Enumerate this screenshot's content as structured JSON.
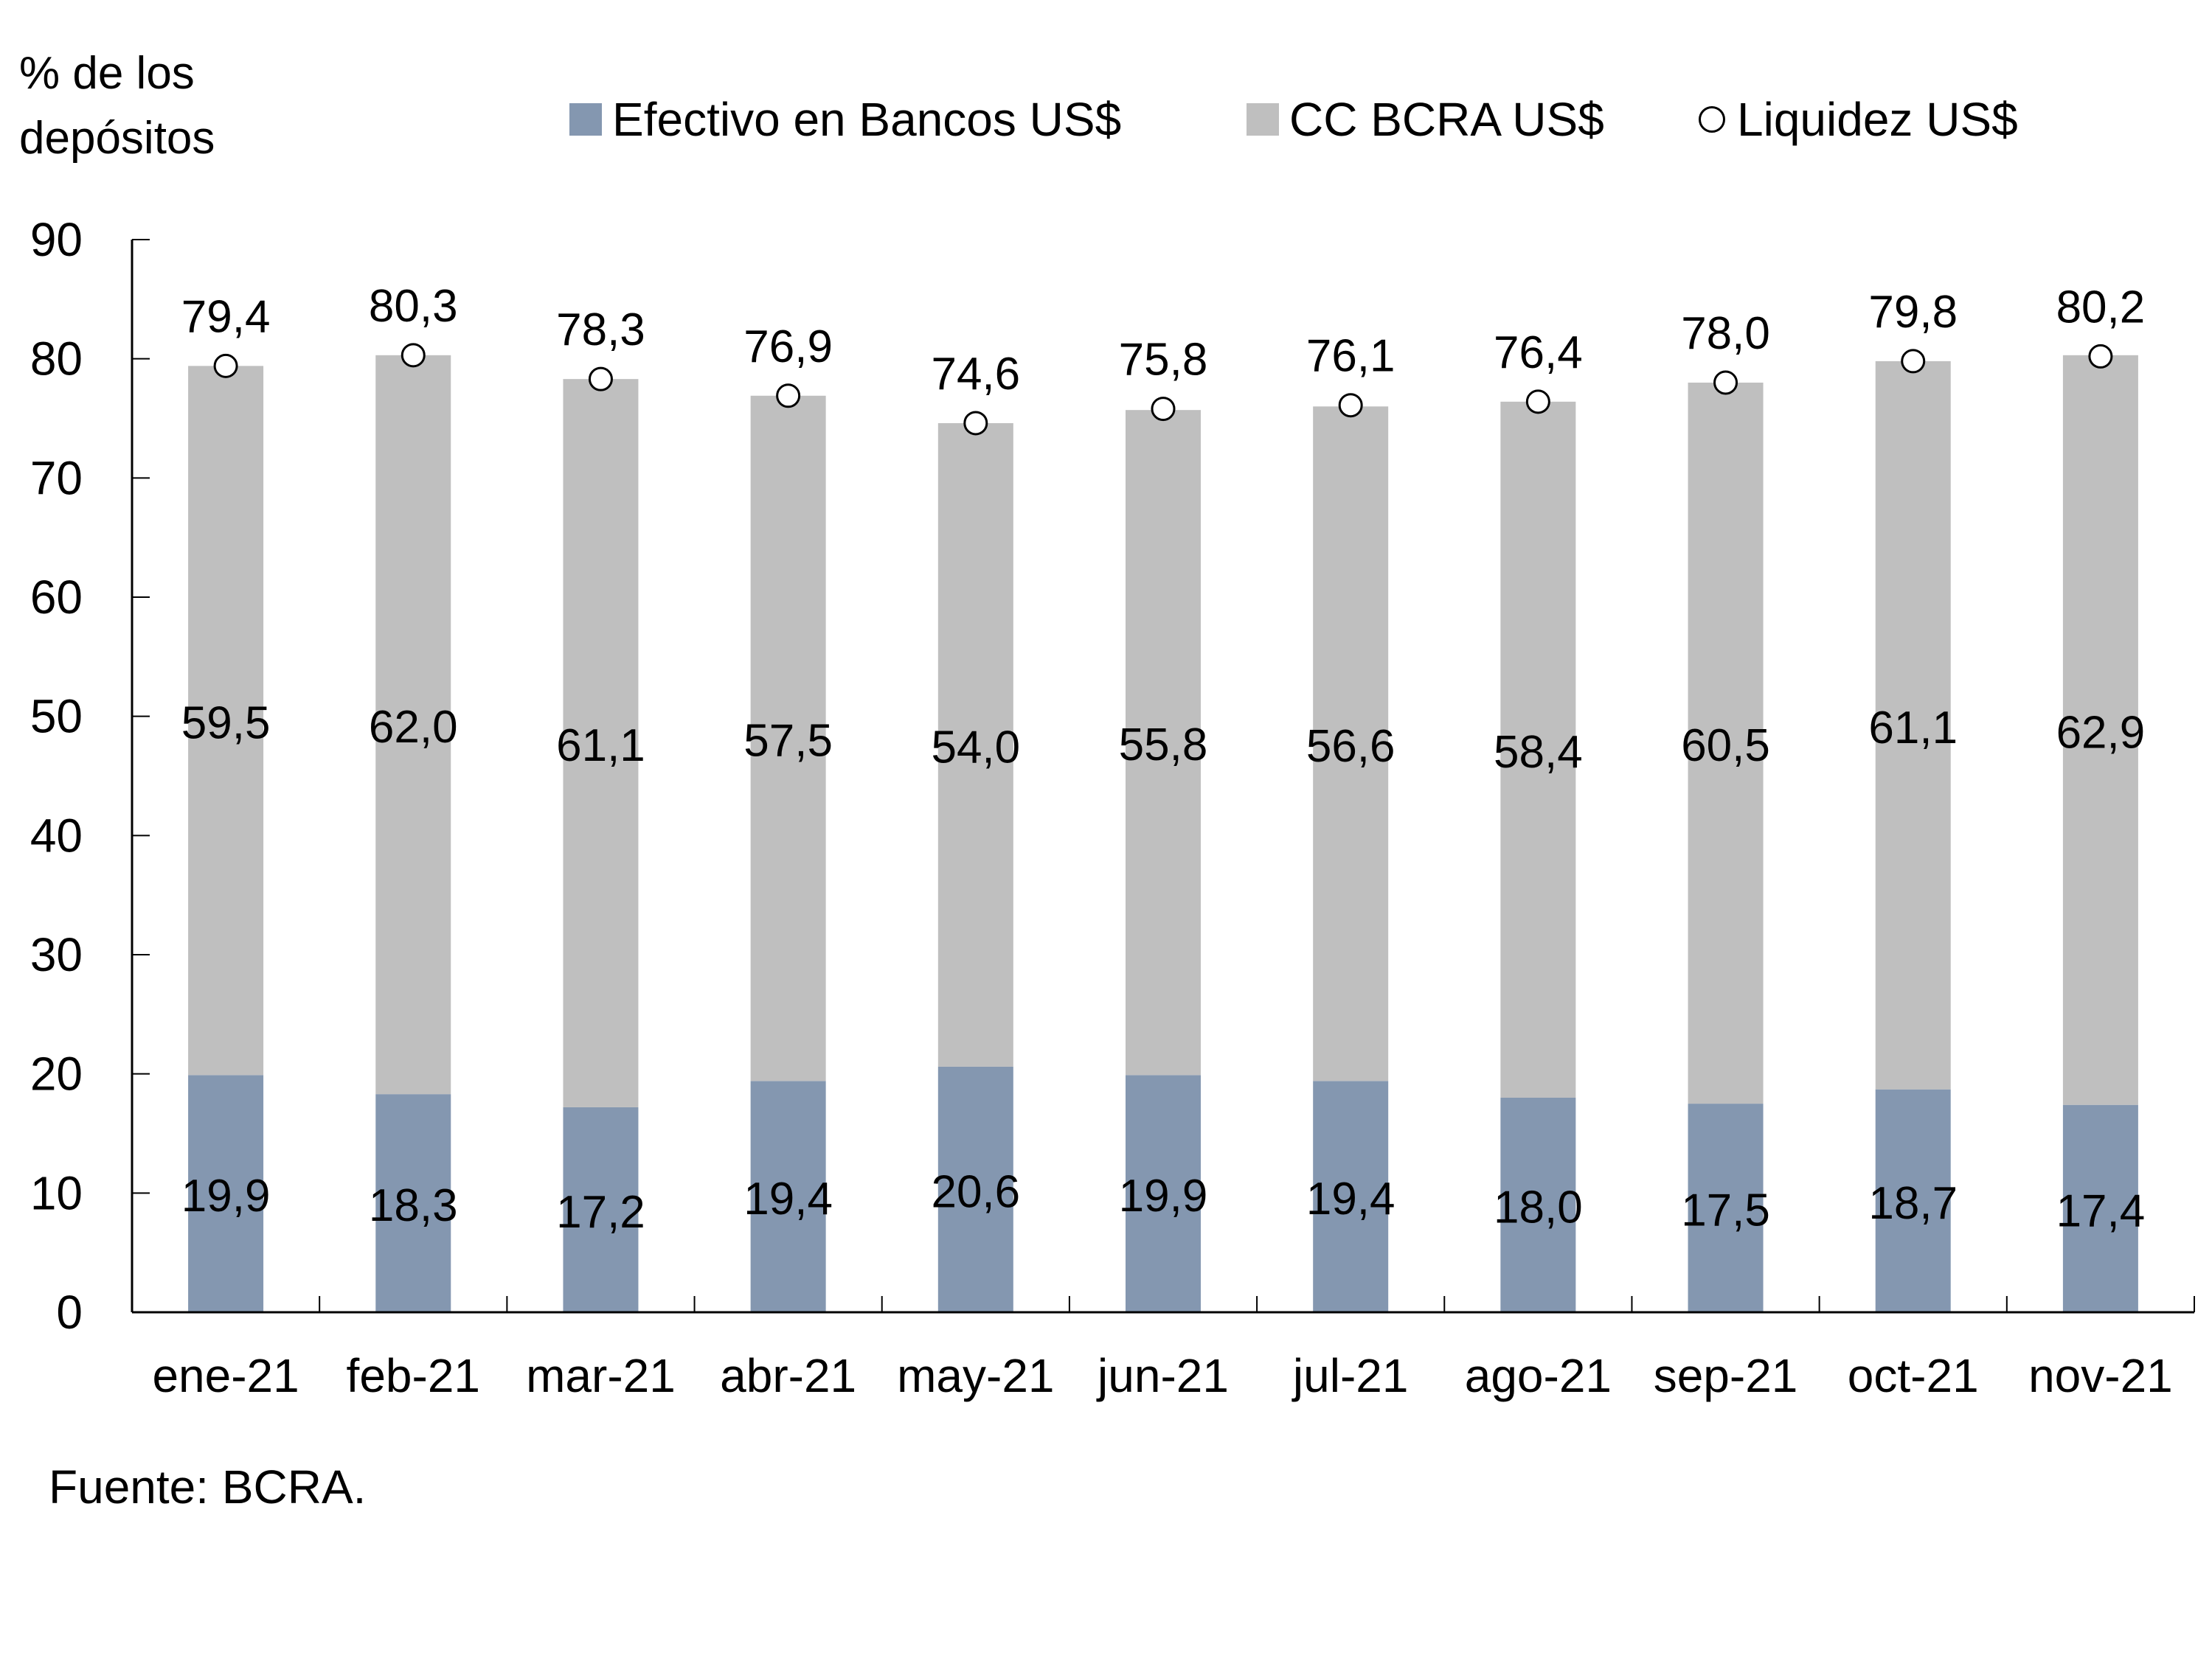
{
  "chart_data": {
    "type": "bar",
    "stacked": true,
    "title": "",
    "ylabel": "% de los depósitos",
    "ylabel_lines": [
      "% de los",
      "depósitos"
    ],
    "xlabel": "",
    "ylim": [
      0,
      90
    ],
    "yticks": [
      0,
      10,
      20,
      30,
      40,
      50,
      60,
      70,
      80,
      90
    ],
    "grid": false,
    "legend_position": "top",
    "categories": [
      "ene-21",
      "feb-21",
      "mar-21",
      "abr-21",
      "may-21",
      "jun-21",
      "jul-21",
      "ago-21",
      "sep-21",
      "oct-21",
      "nov-21"
    ],
    "series": [
      {
        "name": "Efectivo en Bancos US$",
        "type": "bar",
        "color": "#8497b0",
        "values": [
          19.9,
          18.3,
          17.2,
          19.4,
          20.6,
          19.9,
          19.4,
          18.0,
          17.5,
          18.7,
          17.4
        ],
        "labels": [
          "19,9",
          "18,3",
          "17,2",
          "19,4",
          "20,6",
          "19,9",
          "19,4",
          "18,0",
          "17,5",
          "18,7",
          "17,4"
        ]
      },
      {
        "name": "CC BCRA US$",
        "type": "bar",
        "color": "#bfbfbf",
        "values": [
          59.5,
          62.0,
          61.1,
          57.5,
          54.0,
          55.8,
          56.6,
          58.4,
          60.5,
          61.1,
          62.9
        ],
        "labels": [
          "59,5",
          "62,0",
          "61,1",
          "57,5",
          "54,0",
          "55,8",
          "56,6",
          "58,4",
          "60,5",
          "61,1",
          "62,9"
        ]
      },
      {
        "name": "Liquidez US$",
        "type": "scatter",
        "marker": "open-circle",
        "color": "#000000",
        "values": [
          79.4,
          80.3,
          78.3,
          76.9,
          74.6,
          75.8,
          76.1,
          76.4,
          78.0,
          79.8,
          80.2
        ],
        "labels": [
          "79,4",
          "80,3",
          "78,3",
          "76,9",
          "74,6",
          "75,8",
          "76,1",
          "76,4",
          "78,0",
          "79,8",
          "80,2"
        ]
      }
    ],
    "source": "Fuente: BCRA."
  }
}
